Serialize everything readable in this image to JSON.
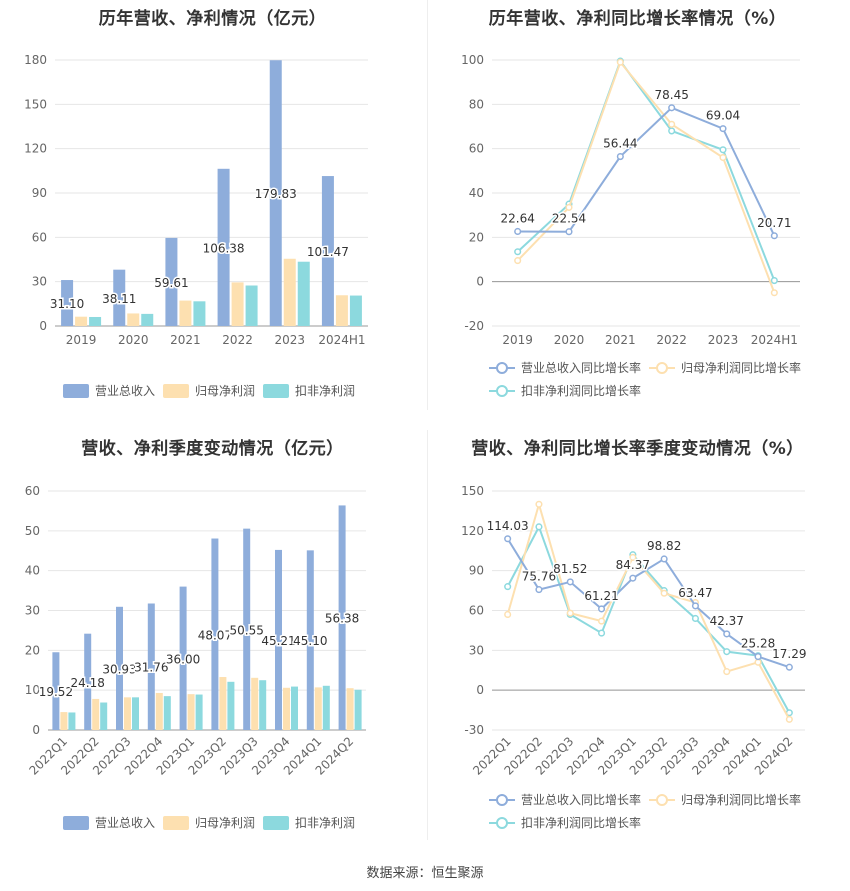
{
  "source": "数据来源：恒生聚源",
  "colors": {
    "revenue": "#8eaddb",
    "net_profit": "#fde0b0",
    "deducted_net_profit": "#8cd9de",
    "line_revenue": "#8eaddb",
    "line_net_profit": "#fde0b0",
    "line_deducted": "#8cd9de",
    "axis_text": "#666666",
    "grid": "#e6e6e6"
  },
  "chart_data": [
    {
      "id": "annual-bar",
      "type": "bar",
      "title": "历年营收、净利情况（亿元）",
      "categories": [
        "2019",
        "2020",
        "2021",
        "2022",
        "2023",
        "2024H1"
      ],
      "ylim": [
        0,
        180
      ],
      "yticks": [
        0,
        30,
        60,
        90,
        120,
        150,
        180
      ],
      "grid": true,
      "legend_position": "bottom",
      "series": [
        {
          "name": "营业总收入",
          "values": [
            31.1,
            38.11,
            59.61,
            106.38,
            179.83,
            101.47
          ],
          "labels": [
            "31.10",
            "38.11",
            "59.61",
            "106.38",
            "179.83",
            "101.47"
          ]
        },
        {
          "name": "归母净利润",
          "values": [
            6.3,
            8.5,
            17.2,
            29.5,
            45.5,
            20.8
          ]
        },
        {
          "name": "扣非净利润",
          "values": [
            6.1,
            8.2,
            16.7,
            27.4,
            43.5,
            20.6
          ]
        }
      ]
    },
    {
      "id": "annual-line",
      "type": "line",
      "title": "历年营收、净利同比增长率情况（%）",
      "categories": [
        "2019",
        "2020",
        "2021",
        "2022",
        "2023",
        "2024H1"
      ],
      "ylim": [
        -20,
        100
      ],
      "yticks": [
        -20,
        0,
        20,
        40,
        60,
        80,
        100
      ],
      "grid": true,
      "legend_position": "bottom",
      "series": [
        {
          "name": "营业总收入同比增长率",
          "values": [
            22.64,
            22.54,
            56.44,
            78.45,
            69.04,
            20.71
          ],
          "labels": [
            "22.64",
            "22.54",
            "56.44",
            "78.45",
            "69.04",
            "20.71"
          ]
        },
        {
          "name": "归母净利润同比增长率",
          "values": [
            9.5,
            33.5,
            99.0,
            71.0,
            56.0,
            -5.0
          ]
        },
        {
          "name": "扣非净利润同比增长率",
          "values": [
            13.5,
            35.0,
            99.5,
            68.0,
            59.5,
            0.5
          ]
        }
      ]
    },
    {
      "id": "quarter-bar",
      "type": "bar",
      "title": "营收、净利季度变动情况（亿元）",
      "categories": [
        "2022Q1",
        "2022Q2",
        "2022Q3",
        "2022Q4",
        "2023Q1",
        "2023Q2",
        "2023Q3",
        "2023Q4",
        "2024Q1",
        "2024Q2"
      ],
      "ylim": [
        0,
        60
      ],
      "yticks": [
        0,
        10,
        20,
        30,
        40,
        50,
        60
      ],
      "grid": true,
      "legend_position": "bottom",
      "series": [
        {
          "name": "营业总收入",
          "values": [
            19.52,
            24.18,
            30.93,
            31.76,
            36.0,
            48.07,
            50.55,
            45.21,
            45.1,
            56.38
          ],
          "labels": [
            "19.52",
            "24.18",
            "30.93",
            "31.76",
            "36.00",
            "48.07",
            "50.55",
            "45.21",
            "45.10",
            "56.38"
          ]
        },
        {
          "name": "归母净利润",
          "values": [
            4.5,
            7.8,
            8.2,
            9.3,
            9.0,
            13.3,
            13.1,
            10.6,
            10.7,
            10.5
          ]
        },
        {
          "name": "扣非净利润",
          "values": [
            4.4,
            6.9,
            8.2,
            8.5,
            8.9,
            12.1,
            12.5,
            10.9,
            11.1,
            10.1
          ]
        }
      ]
    },
    {
      "id": "quarter-line",
      "type": "line",
      "title": "营收、净利同比增长率季度变动情况（%）",
      "categories": [
        "2022Q1",
        "2022Q2",
        "2022Q3",
        "2022Q4",
        "2023Q1",
        "2023Q2",
        "2023Q3",
        "2023Q4",
        "2024Q1",
        "2024Q2"
      ],
      "ylim": [
        -30,
        150
      ],
      "yticks": [
        -30,
        0,
        30,
        60,
        90,
        120,
        150
      ],
      "grid": true,
      "legend_position": "bottom",
      "series": [
        {
          "name": "营业总收入同比增长率",
          "values": [
            114.03,
            75.76,
            81.52,
            61.21,
            84.37,
            98.82,
            63.47,
            42.37,
            25.28,
            17.29
          ],
          "labels": [
            "114.03",
            "75.76",
            "81.52",
            "61.21",
            "84.37",
            "98.82",
            "63.47",
            "42.37",
            "25.28",
            "17.29"
          ]
        },
        {
          "name": "归母净利润同比增长率",
          "values": [
            57.0,
            140.0,
            58.0,
            52.0,
            100.0,
            73.0,
            66.0,
            14.0,
            21.0,
            -22.0
          ]
        },
        {
          "name": "扣非净利润同比增长率",
          "values": [
            78.0,
            123.0,
            57.0,
            43.0,
            102.0,
            75.0,
            54.0,
            29.0,
            26.0,
            -17.0
          ]
        }
      ]
    }
  ]
}
